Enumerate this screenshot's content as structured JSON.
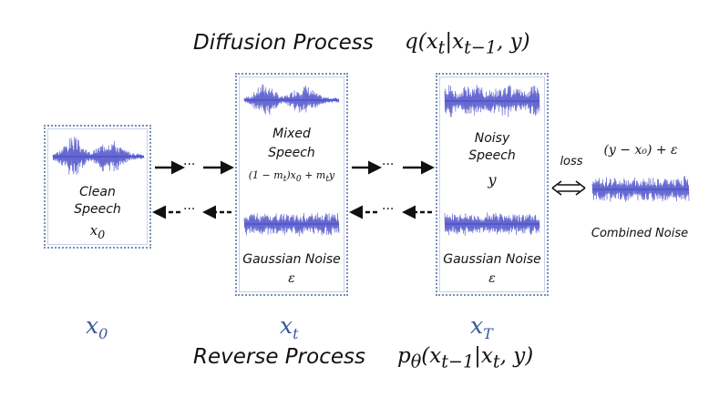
{
  "diffusion_title": "Diffusion Process",
  "diffusion_formula_html": "q(x<sub>t</sub>|x<sub>t−1</sub>, y)",
  "reverse_title": "Reverse Process",
  "reverse_formula_html": "p<sub>θ</sub>(x<sub>t−1</sub>|x<sub>t</sub>, y)",
  "clean": {
    "label1": "Clean",
    "label2": "Speech",
    "symbol_html": "x<sub>0</sub>"
  },
  "mixed": {
    "label1": "Mixed",
    "label2": "Speech",
    "formula_html": "(1 − m<sub>t</sub>)x<sub>0</sub> + m<sub>t</sub>y"
  },
  "noisy": {
    "label1": "Noisy",
    "label2": "Speech",
    "symbol": "y"
  },
  "gaussian_label": "Gaussian Noise",
  "epsilon": "ε",
  "loss_label": "loss",
  "combined_formula": "(y − x₀) + ε",
  "combined_label": "Combined Noise",
  "bottom_vars_html": [
    "x<sub>0</sub>",
    "x<sub>t</sub>",
    "x<sub>T</sub>"
  ],
  "ellipsis": "···",
  "colors": {
    "wave": "#4a4fc8",
    "box_border": "#7a8fb8",
    "var": "#3a5a9a"
  },
  "wave_types": {
    "clean": "speech",
    "mixed": "speech",
    "noisy": "noisy",
    "gaussian": "noise",
    "combined": "noise"
  }
}
